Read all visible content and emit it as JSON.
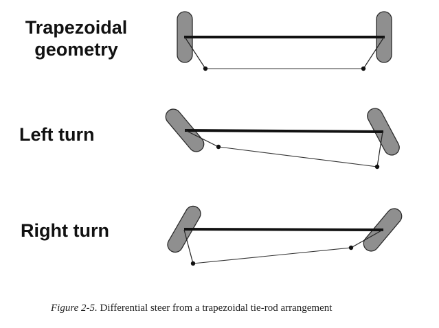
{
  "rows": [
    {
      "label_lines": [
        "Trapezoidal",
        "geometry"
      ]
    },
    {
      "label": "Left turn"
    },
    {
      "label": "Right turn"
    }
  ],
  "caption": {
    "figure_number": "Figure 2-5.",
    "text": "Differential steer from a trapezoidal tie-rod arrangement"
  },
  "colors": {
    "wheel_fill": "#8f8f8f",
    "axle": "#111111",
    "background": "#ffffff"
  }
}
